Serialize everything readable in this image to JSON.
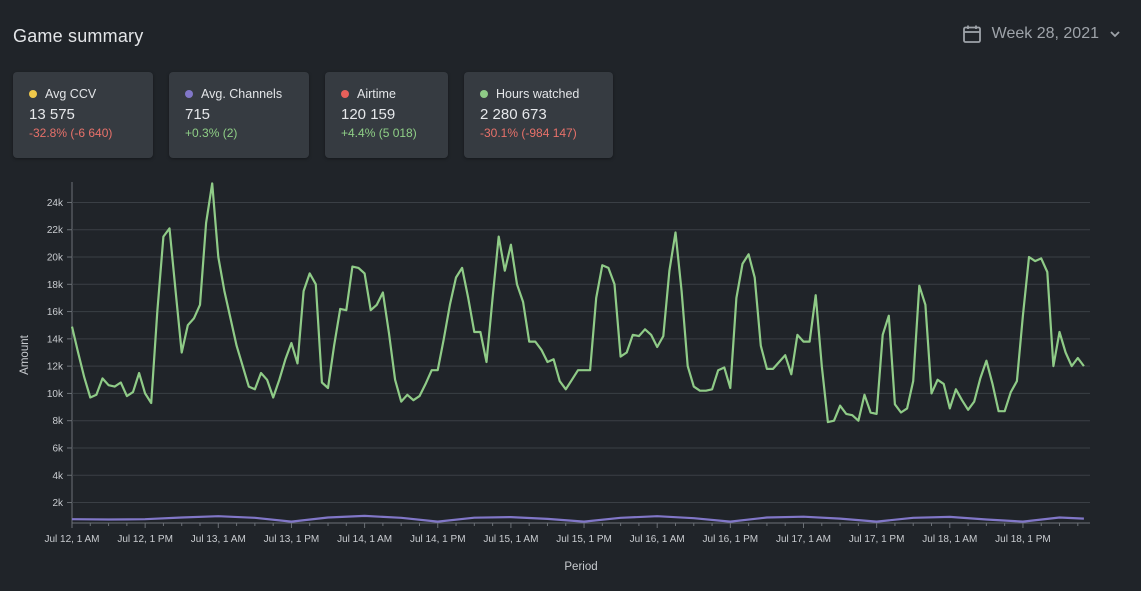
{
  "header": {
    "title": "Game summary",
    "week_label": "Week 28, 2021"
  },
  "icons": {
    "calendar": "calendar-icon",
    "chevron": "chevron-down-icon"
  },
  "cards": [
    {
      "title": "Avg CCV",
      "value": "13 575",
      "delta": "-32.8% (-6 640)",
      "trend": "negative",
      "color": "#f0c84a"
    },
    {
      "title": "Avg. Channels",
      "value": "715",
      "delta": "+0.3% (2)",
      "trend": "positive",
      "color": "#8177c8"
    },
    {
      "title": "Airtime",
      "value": "120 159",
      "delta": "+4.4% (5 018)",
      "trend": "positive",
      "color": "#e8605a"
    },
    {
      "title": "Hours watched",
      "value": "2 280 673",
      "delta": "-30.1% (-984 147)",
      "trend": "negative",
      "color": "#8fcb87"
    }
  ],
  "chart_data": {
    "type": "line",
    "xlabel": "Period",
    "ylabel": "Amount",
    "ylim": [
      500,
      25500
    ],
    "xlim": [
      0,
      167
    ],
    "grid": true,
    "y_ticks": [
      2000,
      4000,
      6000,
      8000,
      10000,
      12000,
      14000,
      16000,
      18000,
      20000,
      22000,
      24000
    ],
    "y_tick_labels": [
      "2k",
      "4k",
      "6k",
      "8k",
      "10k",
      "12k",
      "14k",
      "16k",
      "18k",
      "20k",
      "22k",
      "24k"
    ],
    "x_ticks": [
      {
        "hour": 0,
        "label": "Jul 12, 1 AM"
      },
      {
        "hour": 12,
        "label": "Jul 12, 1 PM"
      },
      {
        "hour": 24,
        "label": "Jul 13, 1 AM"
      },
      {
        "hour": 36,
        "label": "Jul 13, 1 PM"
      },
      {
        "hour": 48,
        "label": "Jul 14, 1 AM"
      },
      {
        "hour": 60,
        "label": "Jul 14, 1 PM"
      },
      {
        "hour": 72,
        "label": "Jul 15, 1 AM"
      },
      {
        "hour": 84,
        "label": "Jul 15, 1 PM"
      },
      {
        "hour": 96,
        "label": "Jul 16, 1 AM"
      },
      {
        "hour": 108,
        "label": "Jul 16, 1 PM"
      },
      {
        "hour": 120,
        "label": "Jul 17, 1 AM"
      },
      {
        "hour": 132,
        "label": "Jul 17, 1 PM"
      },
      {
        "hour": 144,
        "label": "Jul 18, 1 AM"
      },
      {
        "hour": 156,
        "label": "Jul 18, 1 PM"
      }
    ],
    "series": [
      {
        "color": "#8fcb87",
        "points": [
          [
            0,
            14900
          ],
          [
            1,
            13000
          ],
          [
            2,
            11200
          ],
          [
            3,
            9700
          ],
          [
            4,
            9900
          ],
          [
            5,
            11100
          ],
          [
            6,
            10600
          ],
          [
            7,
            10500
          ],
          [
            8,
            10800
          ],
          [
            9,
            9800
          ],
          [
            10,
            10100
          ],
          [
            11,
            11500
          ],
          [
            12,
            10000
          ],
          [
            13,
            9300
          ],
          [
            14,
            16000
          ],
          [
            15,
            21500
          ],
          [
            16,
            22100
          ],
          [
            17,
            17500
          ],
          [
            18,
            13000
          ],
          [
            19,
            15000
          ],
          [
            20,
            15500
          ],
          [
            21,
            16500
          ],
          [
            22,
            22500
          ],
          [
            23,
            25400
          ],
          [
            24,
            20000
          ],
          [
            25,
            17500
          ],
          [
            26,
            15500
          ],
          [
            27,
            13500
          ],
          [
            28,
            12000
          ],
          [
            29,
            10500
          ],
          [
            30,
            10300
          ],
          [
            31,
            11500
          ],
          [
            32,
            11000
          ],
          [
            33,
            9700
          ],
          [
            34,
            11000
          ],
          [
            35,
            12500
          ],
          [
            36,
            13700
          ],
          [
            37,
            12200
          ],
          [
            38,
            17500
          ],
          [
            39,
            18800
          ],
          [
            40,
            18000
          ],
          [
            41,
            10800
          ],
          [
            42,
            10400
          ],
          [
            43,
            13500
          ],
          [
            44,
            16200
          ],
          [
            45,
            16100
          ],
          [
            46,
            19300
          ],
          [
            47,
            19200
          ],
          [
            48,
            18800
          ],
          [
            49,
            16100
          ],
          [
            50,
            16500
          ],
          [
            51,
            17400
          ],
          [
            52,
            14400
          ],
          [
            53,
            11000
          ],
          [
            54,
            9400
          ],
          [
            55,
            9900
          ],
          [
            56,
            9500
          ],
          [
            57,
            9800
          ],
          [
            58,
            10700
          ],
          [
            59,
            11700
          ],
          [
            60,
            11700
          ],
          [
            61,
            14000
          ],
          [
            62,
            16500
          ],
          [
            63,
            18500
          ],
          [
            64,
            19200
          ],
          [
            65,
            17000
          ],
          [
            66,
            14500
          ],
          [
            67,
            14500
          ],
          [
            68,
            12300
          ],
          [
            69,
            17000
          ],
          [
            70,
            21500
          ],
          [
            71,
            19000
          ],
          [
            72,
            20900
          ],
          [
            73,
            18000
          ],
          [
            74,
            16700
          ],
          [
            75,
            13800
          ],
          [
            76,
            13800
          ],
          [
            77,
            13200
          ],
          [
            78,
            12300
          ],
          [
            79,
            12500
          ],
          [
            80,
            10900
          ],
          [
            81,
            10300
          ],
          [
            82,
            11000
          ],
          [
            83,
            11700
          ],
          [
            84,
            11700
          ],
          [
            85,
            11700
          ],
          [
            86,
            17000
          ],
          [
            87,
            19400
          ],
          [
            88,
            19200
          ],
          [
            89,
            18000
          ],
          [
            90,
            12700
          ],
          [
            91,
            13000
          ],
          [
            92,
            14300
          ],
          [
            93,
            14200
          ],
          [
            94,
            14700
          ],
          [
            95,
            14300
          ],
          [
            96,
            13400
          ],
          [
            97,
            14200
          ],
          [
            98,
            19000
          ],
          [
            99,
            21800
          ],
          [
            100,
            17500
          ],
          [
            101,
            12000
          ],
          [
            102,
            10500
          ],
          [
            103,
            10200
          ],
          [
            104,
            10200
          ],
          [
            105,
            10300
          ],
          [
            106,
            11700
          ],
          [
            107,
            11900
          ],
          [
            108,
            10400
          ],
          [
            109,
            17000
          ],
          [
            110,
            19500
          ],
          [
            111,
            20200
          ],
          [
            112,
            18500
          ],
          [
            113,
            13500
          ],
          [
            114,
            11800
          ],
          [
            115,
            11800
          ],
          [
            116,
            12300
          ],
          [
            117,
            12800
          ],
          [
            118,
            11400
          ],
          [
            119,
            14300
          ],
          [
            120,
            13800
          ],
          [
            121,
            13800
          ],
          [
            122,
            17200
          ],
          [
            123,
            12000
          ],
          [
            124,
            7900
          ],
          [
            125,
            8000
          ],
          [
            126,
            9100
          ],
          [
            127,
            8500
          ],
          [
            128,
            8400
          ],
          [
            129,
            8000
          ],
          [
            130,
            9900
          ],
          [
            131,
            8600
          ],
          [
            132,
            8500
          ],
          [
            133,
            14300
          ],
          [
            134,
            15700
          ],
          [
            135,
            9200
          ],
          [
            136,
            8600
          ],
          [
            137,
            8900
          ],
          [
            138,
            10900
          ],
          [
            139,
            17900
          ],
          [
            140,
            16500
          ],
          [
            141,
            10000
          ],
          [
            142,
            11000
          ],
          [
            143,
            10700
          ],
          [
            144,
            8900
          ],
          [
            145,
            10300
          ],
          [
            146,
            9500
          ],
          [
            147,
            8800
          ],
          [
            148,
            9400
          ],
          [
            149,
            11100
          ],
          [
            150,
            12400
          ],
          [
            151,
            10700
          ],
          [
            152,
            8700
          ],
          [
            153,
            8700
          ],
          [
            154,
            10100
          ],
          [
            155,
            10900
          ],
          [
            156,
            15700
          ],
          [
            157,
            20000
          ],
          [
            158,
            19700
          ],
          [
            159,
            19900
          ],
          [
            160,
            18900
          ],
          [
            161,
            12000
          ],
          [
            162,
            14500
          ],
          [
            163,
            13000
          ],
          [
            164,
            12000
          ],
          [
            165,
            12600
          ],
          [
            166,
            12000
          ]
        ]
      },
      {
        "color": "#8177c8",
        "points": [
          [
            0,
            780
          ],
          [
            6,
            760
          ],
          [
            12,
            780
          ],
          [
            18,
            900
          ],
          [
            24,
            1000
          ],
          [
            30,
            880
          ],
          [
            36,
            600
          ],
          [
            42,
            900
          ],
          [
            48,
            1020
          ],
          [
            54,
            880
          ],
          [
            60,
            600
          ],
          [
            66,
            890
          ],
          [
            72,
            930
          ],
          [
            78,
            800
          ],
          [
            84,
            600
          ],
          [
            90,
            880
          ],
          [
            96,
            1000
          ],
          [
            102,
            850
          ],
          [
            108,
            600
          ],
          [
            114,
            900
          ],
          [
            120,
            960
          ],
          [
            126,
            820
          ],
          [
            132,
            600
          ],
          [
            138,
            880
          ],
          [
            144,
            950
          ],
          [
            150,
            760
          ],
          [
            156,
            600
          ],
          [
            162,
            900
          ],
          [
            166,
            820
          ]
        ]
      }
    ]
  }
}
